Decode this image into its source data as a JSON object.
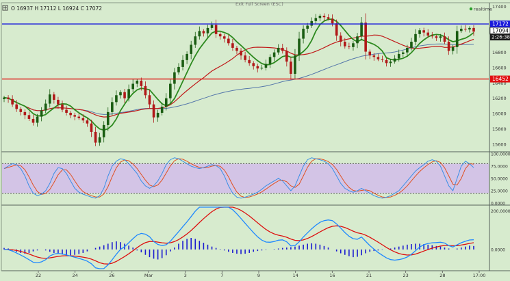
{
  "header": {
    "ohlc": "O 16937  H 17112  L 16924  C 17072",
    "exit_label": "Exit Full Screen (ESC)",
    "realtime_label": "realtime",
    "expand_icon": "expand-icon"
  },
  "colors": {
    "background": "#d7ebce",
    "bull": "#1a5c12",
    "bear": "#b01818",
    "ma_fast": "#2d8a1f",
    "ma_slow": "#c01818",
    "ma_long": "#5577aa",
    "stoch_k": "#3a8ee6",
    "stoch_d": "#e05020",
    "macd_line": "#1e88ff",
    "macd_signal": "#dd1010",
    "histogram": "#1a1ad0",
    "resistance": "#1a1adc",
    "support": "#e01010",
    "stoch_band": "#d3c4e6"
  },
  "price_axis": {
    "ticks": [
      "17400",
      "17200",
      "17000",
      "16800",
      "16600",
      "16400",
      "16200",
      "16000",
      "15800",
      "15600"
    ],
    "resistance_label": "17172",
    "last_label": "17094",
    "countdown_label": "2:26:38",
    "support_label": "16452"
  },
  "stoch_axis": {
    "ticks": [
      "100.0000",
      "75.0000",
      "50.0000",
      "25.0000",
      "0.0000"
    ]
  },
  "macd_axis": {
    "ticks": [
      "200.0000",
      "0.0000"
    ]
  },
  "time_axis": {
    "labels": [
      "22",
      "24",
      "26",
      "Mar",
      "3",
      "7",
      "9",
      "14",
      "16",
      "21",
      "23",
      "28",
      "17:00"
    ]
  },
  "chart_data": [
    {
      "type": "candlestick",
      "panel": "price",
      "ylim": [
        15500,
        17450
      ],
      "horizontal_lines": [
        17172,
        16452
      ],
      "last_price": 17094,
      "overlays": [
        "fast moving average",
        "slow moving average",
        "long moving average"
      ],
      "closes": [
        16210,
        16190,
        16120,
        16060,
        16020,
        15980,
        15930,
        15880,
        15960,
        16040,
        16130,
        16250,
        16180,
        16120,
        16050,
        16010,
        15980,
        15960,
        15940,
        15910,
        15870,
        15760,
        15620,
        15690,
        15850,
        16020,
        16150,
        16240,
        16280,
        16200,
        16320,
        16390,
        16430,
        16360,
        16240,
        16120,
        15950,
        16010,
        16090,
        16200,
        16390,
        16540,
        16610,
        16700,
        16780,
        16900,
        17010,
        17080,
        17050,
        17120,
        17160,
        17040,
        17010,
        16980,
        16920,
        16860,
        16820,
        16760,
        16700,
        16660,
        16620,
        16590,
        16600,
        16650,
        16740,
        16800,
        16860,
        16820,
        16680,
        16520,
        16760,
        16980,
        17110,
        17150,
        17210,
        17250,
        17280,
        17260,
        17240,
        17180,
        17020,
        16940,
        16880,
        16870,
        16920,
        17010,
        17190,
        16810,
        16760,
        16740,
        16710,
        16700,
        16660,
        16680,
        16720,
        16780,
        16800,
        16860,
        16940,
        17040,
        17090,
        17060,
        17020,
        17010,
        16990,
        17010,
        16940,
        16820,
        16870,
        17080,
        17110,
        17100,
        17120,
        17072
      ]
    },
    {
      "type": "line",
      "panel": "stochastic",
      "ylim": [
        0,
        100
      ],
      "band": [
        20,
        80
      ],
      "series_k": [
        70,
        75,
        80,
        78,
        70,
        55,
        35,
        20,
        15,
        18,
        25,
        40,
        60,
        72,
        70,
        60,
        45,
        30,
        22,
        18,
        15,
        12,
        10,
        15,
        30,
        55,
        75,
        85,
        90,
        88,
        80,
        70,
        60,
        45,
        35,
        30,
        35,
        45,
        60,
        78,
        88,
        92,
        90,
        85,
        80,
        75,
        72,
        70,
        72,
        75,
        78,
        76,
        70,
        55,
        35,
        20,
        12,
        10,
        12,
        15,
        18,
        22,
        28,
        35,
        40,
        45,
        50,
        45,
        35,
        25,
        35,
        55,
        75,
        88,
        92,
        90,
        88,
        85,
        80,
        70,
        55,
        40,
        30,
        25,
        22,
        25,
        30,
        25,
        20,
        15,
        12,
        10,
        12,
        15,
        20,
        25,
        35,
        45,
        55,
        65,
        72,
        78,
        85,
        88,
        85,
        75,
        55,
        35,
        25,
        50,
        75,
        85,
        80,
        72
      ]
    },
    {
      "type": "line+histogram",
      "panel": "macd",
      "ylim": [
        -100,
        220
      ],
      "histogram": [
        8,
        5,
        -5,
        -12,
        -18,
        -22,
        -18,
        -10,
        -5,
        0,
        -5,
        -12,
        -18,
        -22,
        -26,
        -28,
        -30,
        -28,
        -24,
        -18,
        -10,
        0,
        8,
        15,
        22,
        30,
        38,
        42,
        38,
        30,
        20,
        10,
        -5,
        -15,
        -28,
        -40,
        -48,
        -52,
        -45,
        -30,
        -10,
        10,
        30,
        45,
        55,
        60,
        55,
        45,
        35,
        25,
        15,
        8,
        2,
        -5,
        -12,
        -18,
        -22,
        -24,
        -22,
        -18,
        -12,
        -8,
        -5,
        -2,
        0,
        2,
        5,
        8,
        10,
        12,
        15,
        20,
        25,
        30,
        32,
        30,
        25,
        18,
        10,
        0,
        -10,
        -20,
        -28,
        -35,
        -40,
        -38,
        -30,
        -20,
        -12,
        -8,
        -5,
        -2,
        0,
        5,
        10,
        15,
        20,
        25,
        28,
        30,
        30,
        28,
        25,
        22,
        18,
        15,
        10,
        5,
        0,
        5,
        10,
        15,
        20,
        18
      ]
    }
  ]
}
